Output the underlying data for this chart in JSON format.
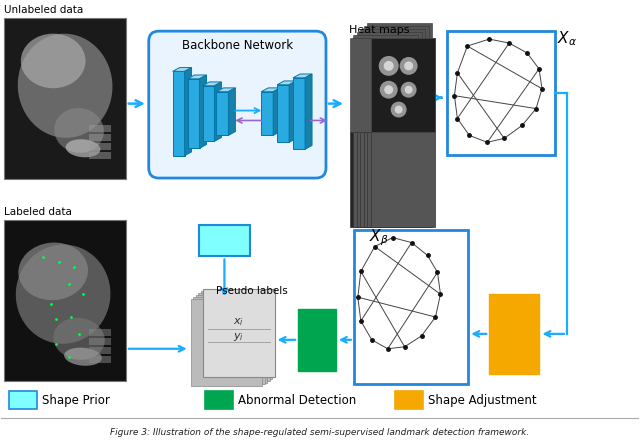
{
  "fig_caption": "Figure 3: Illustration of the shape-regulated semi-supervised landmark detection framework.",
  "colors": {
    "blue_arrow": "#1AADFF",
    "blue_border": "#2288DD",
    "blue_border_dark": "#1166BB",
    "green": "#00A550",
    "gold": "#F5A800",
    "purple_arrow": "#9966CC",
    "bg": "#FFFFFF",
    "nn_front": "#29ABE2",
    "nn_top": "#A8D8EA",
    "nn_right": "#1A7FA8",
    "nn_edge": "#0077AA",
    "xray_bg": "#1A1A1A",
    "xray_bg2": "#222222",
    "heatmap_bg": "#2A2A2A",
    "heatmap_spot": "#DDDDDD",
    "cyan_fill": "#7FFFFF",
    "pseudo_bg": "#CCCCCC",
    "pseudo_line": "#999999"
  },
  "legend": [
    {
      "label": "Shape Prior",
      "color": "#7FFFFF",
      "border": "#2288DD"
    },
    {
      "label": "Abnormal Detection",
      "color": "#00A550",
      "border": "#00A550"
    },
    {
      "label": "Shape Adjustment",
      "color": "#F5A800",
      "border": "#F5A800"
    }
  ],
  "texts": {
    "unlabeled": "Unlabeled data",
    "labeled": "Labeled data",
    "backbone": "Backbone Network",
    "heatmaps": "Heat maps",
    "x_alpha": "$X_{\\alpha}$",
    "x_beta": "$X_{\\beta}$",
    "pseudo": "Pseudo labels",
    "xi": "$x_i$",
    "yi": "$y_i$"
  }
}
